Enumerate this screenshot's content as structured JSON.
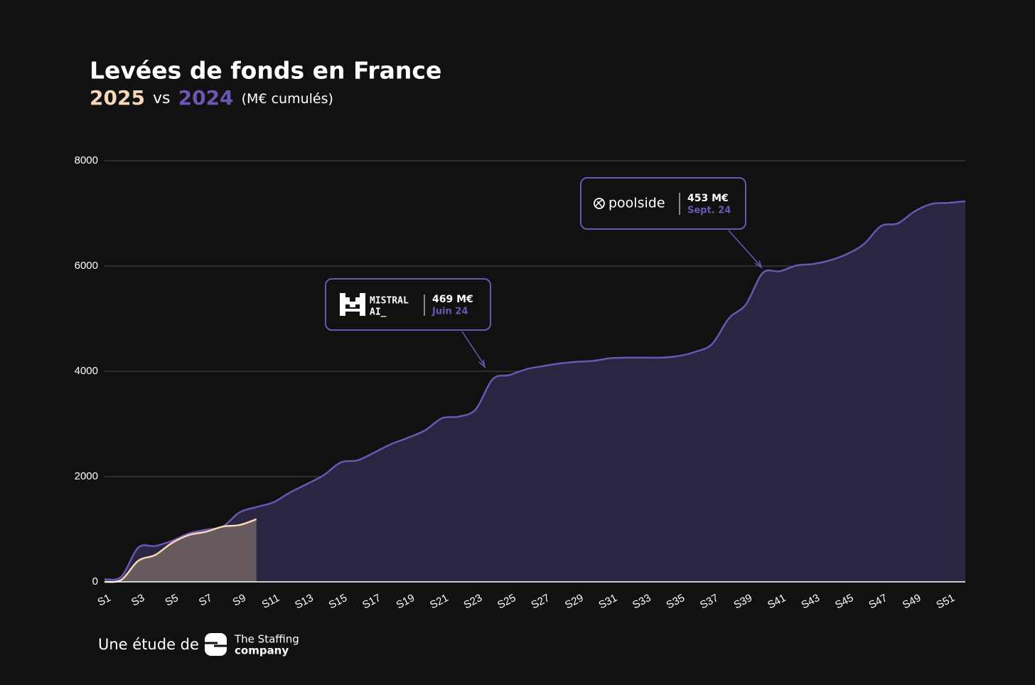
{
  "chart_data": {
    "type": "area",
    "title": "Levées de fonds en France",
    "subtitle_connector": "vs",
    "unit_label": "(M€ cumulés)",
    "categories": [
      "S1",
      null,
      "S3",
      null,
      "S5",
      null,
      "S7",
      null,
      "S9",
      null,
      "S11",
      null,
      "S13",
      null,
      "S15",
      null,
      "S17",
      null,
      "S19",
      null,
      "S21",
      null,
      "S23",
      null,
      "S25",
      null,
      "S27",
      null,
      "S29",
      null,
      "S31",
      null,
      "S33",
      null,
      "S35",
      null,
      "S37",
      null,
      "S39",
      null,
      "S41",
      null,
      "S43",
      null,
      "S45",
      null,
      "S47",
      null,
      "S49",
      null,
      "S51",
      null
    ],
    "series": [
      {
        "name": "2025",
        "color": "#f6d7b8",
        "fill": "#665a5f",
        "values": [
          0,
          40,
          400,
          510,
          740,
          890,
          950,
          1050,
          1080,
          1190,
          null,
          null,
          null,
          null,
          null,
          null,
          null,
          null,
          null,
          null,
          null,
          null,
          null,
          null,
          null,
          null,
          null,
          null,
          null,
          null,
          null,
          null,
          null,
          null,
          null,
          null,
          null,
          null,
          null,
          null,
          null,
          null,
          null,
          null,
          null,
          null,
          null,
          null,
          null,
          null,
          null,
          null
        ]
      },
      {
        "name": "2024",
        "color": "#6c56b3",
        "fill": "#2a2540",
        "values": [
          50,
          100,
          650,
          680,
          780,
          920,
          990,
          1050,
          1320,
          1420,
          1510,
          1700,
          1860,
          2030,
          2270,
          2310,
          2460,
          2620,
          2740,
          2880,
          3110,
          3140,
          3280,
          3850,
          3930,
          4040,
          4100,
          4150,
          4180,
          4200,
          4250,
          4260,
          4260,
          4260,
          4290,
          4370,
          4520,
          5010,
          5270,
          5870,
          5900,
          6010,
          6040,
          6110,
          6230,
          6420,
          6760,
          6810,
          7040,
          7180,
          7200,
          7230
        ]
      }
    ],
    "ylim": [
      0,
      8000
    ],
    "yticks": [
      0,
      2000,
      4000,
      6000,
      8000
    ],
    "grid": true,
    "annotations": [
      {
        "label": [
          "MISTRAL",
          "AI_"
        ],
        "amount": "469 M€",
        "date": "Juin 24"
      },
      {
        "label": "poolside",
        "amount": "453 M€",
        "date": "Sept. 24"
      }
    ]
  },
  "footer": {
    "text": "Une étude de",
    "brand": [
      "The Staffing",
      "company"
    ]
  }
}
